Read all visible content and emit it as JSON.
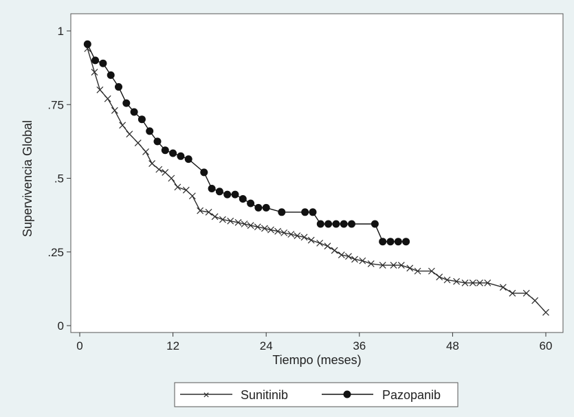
{
  "chart_data": {
    "type": "line",
    "title": "",
    "xlabel": "Tiempo (meses)",
    "ylabel": "Supervivencia Global",
    "xlim": [
      0,
      61
    ],
    "ylim": [
      0,
      1
    ],
    "xticks": [
      0,
      12,
      24,
      36,
      48,
      60
    ],
    "xtick_labels": [
      "0",
      "12",
      "24",
      "36",
      "48",
      "60"
    ],
    "yticks": [
      0,
      0.25,
      0.5,
      0.75,
      1
    ],
    "ytick_labels": [
      "0",
      ".25",
      ".5",
      ".75",
      "1"
    ],
    "grid": false,
    "legend_position": "bottom",
    "series": [
      {
        "name": "Sunitinib",
        "marker": "x",
        "color": "#2b2b2b",
        "x": [
          1.0,
          1.9,
          2.6,
          3.6,
          4.5,
          5.5,
          6.4,
          7.5,
          8.5,
          9.3,
          10.2,
          11.0,
          11.8,
          12.6,
          13.7,
          14.5,
          15.5,
          16.6,
          17.4,
          18.4,
          19.4,
          20.4,
          21.2,
          22.0,
          22.9,
          23.8,
          24.6,
          25.5,
          26.3,
          27.2,
          28.0,
          28.9,
          29.8,
          30.9,
          31.9,
          32.8,
          33.7,
          34.6,
          35.4,
          36.4,
          37.5,
          39.0,
          40.4,
          41.4,
          42.5,
          43.5,
          45.3,
          46.3,
          47.3,
          48.5,
          49.6,
          50.6,
          51.5,
          52.5,
          54.5,
          55.7,
          57.5,
          58.6,
          60.0
        ],
        "y": [
          0.94,
          0.86,
          0.8,
          0.77,
          0.73,
          0.68,
          0.65,
          0.62,
          0.59,
          0.55,
          0.53,
          0.52,
          0.5,
          0.47,
          0.46,
          0.44,
          0.39,
          0.385,
          0.37,
          0.36,
          0.355,
          0.35,
          0.345,
          0.34,
          0.335,
          0.33,
          0.325,
          0.32,
          0.315,
          0.31,
          0.305,
          0.3,
          0.29,
          0.28,
          0.27,
          0.255,
          0.24,
          0.235,
          0.225,
          0.22,
          0.21,
          0.205,
          0.205,
          0.205,
          0.195,
          0.185,
          0.185,
          0.165,
          0.155,
          0.15,
          0.145,
          0.145,
          0.145,
          0.145,
          0.13,
          0.11,
          0.11,
          0.085,
          0.045
        ]
      },
      {
        "name": "Pazopanib",
        "marker": "circle",
        "color": "#111111",
        "x": [
          1.0,
          2.0,
          3.0,
          4.0,
          5.0,
          6.0,
          7.0,
          8.0,
          9.0,
          10.0,
          11.0,
          12.0,
          13.0,
          14.0,
          16.0,
          17.0,
          18.0,
          19.0,
          20.0,
          21.0,
          22.0,
          23.0,
          24.0,
          26.0,
          29.0,
          30.0,
          31.0,
          32.0,
          33.0,
          34.0,
          35.0,
          38.0,
          39.0,
          40.0,
          41.0,
          42.0
        ],
        "y": [
          0.955,
          0.9,
          0.89,
          0.85,
          0.81,
          0.755,
          0.725,
          0.7,
          0.66,
          0.625,
          0.595,
          0.585,
          0.575,
          0.565,
          0.52,
          0.465,
          0.455,
          0.445,
          0.445,
          0.43,
          0.415,
          0.4,
          0.4,
          0.385,
          0.385,
          0.385,
          0.345,
          0.345,
          0.345,
          0.345,
          0.345,
          0.345,
          0.285,
          0.285,
          0.285,
          0.285
        ]
      }
    ]
  }
}
